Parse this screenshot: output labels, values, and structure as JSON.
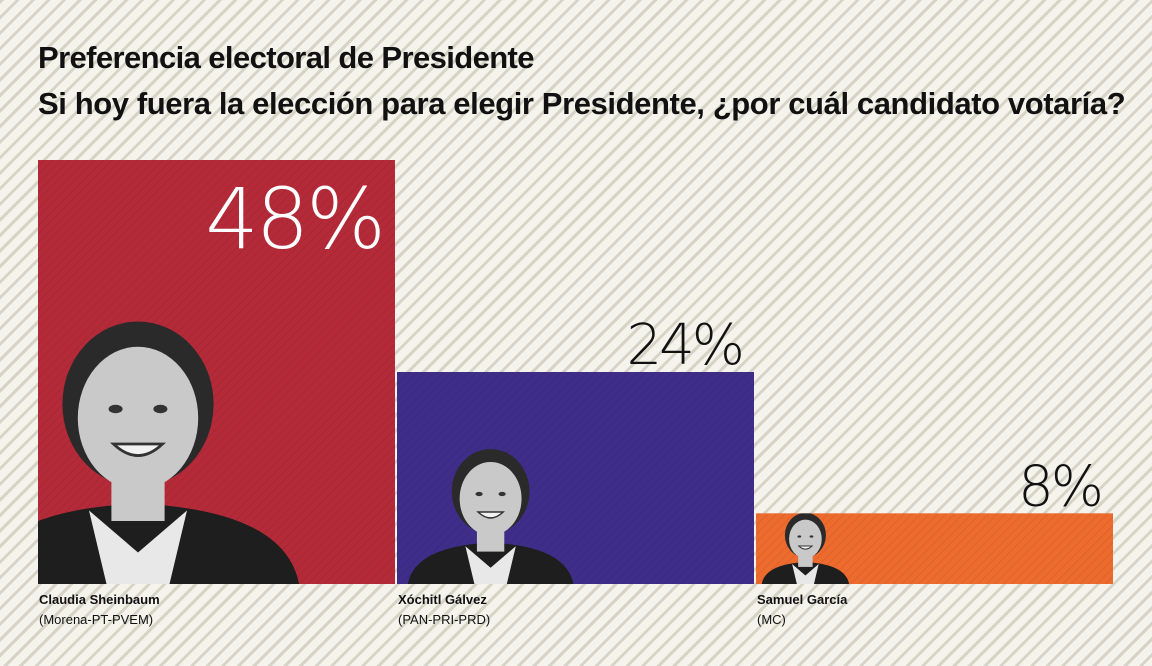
{
  "title": "Preferencia electoral de Presidente",
  "subtitle": "Si hoy fuera la elección para elegir Presidente, ¿por cuál candidato votaría?",
  "chart_data": {
    "type": "bar",
    "categories": [
      "Claudia Sheinbaum",
      "Xóchitl Gálvez",
      "Samuel García"
    ],
    "parties": [
      "(Morena-PT-PVEM)",
      "(PAN-PRI-PRD)",
      "(MC)"
    ],
    "values": [
      48,
      24,
      8
    ],
    "value_labels": [
      "48%",
      "24%",
      "8%"
    ],
    "unit": "%",
    "ylim": [
      0,
      48
    ],
    "colors": [
      "#b42a38",
      "#3e2e8a",
      "#ee6b2e"
    ],
    "photo_icons": [
      "candidate-photo-icon",
      "candidate-photo-icon",
      "candidate-photo-icon"
    ]
  }
}
